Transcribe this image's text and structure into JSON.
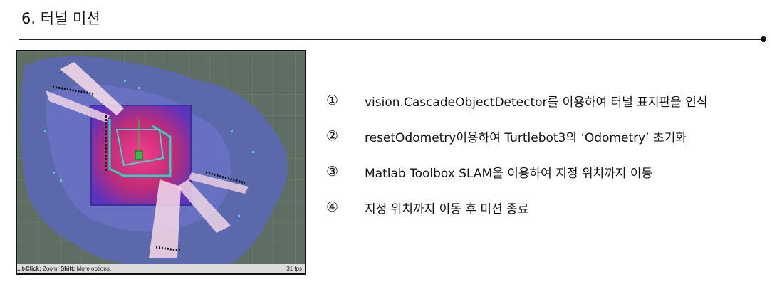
{
  "slide": {
    "title": "6. 터널 미션"
  },
  "screenshot": {
    "status_hint_prefix": "...t-Click:",
    "status_hint_zoom": " Zoom. ",
    "status_hint_shift": "Shift:",
    "status_hint_more": " More options.",
    "fps": "31 fps"
  },
  "steps": [
    {
      "marker": "①",
      "text": "vision.CascadeObjectDetector를 이용하여 터널 표지판을 인식"
    },
    {
      "marker": "②",
      "text": "resetOdometry이용하여 Turtlebot3의 ‘Odometry’ 초기화"
    },
    {
      "marker": "③",
      "text": "Matlab Toolbox SLAM을 이용하여 지정 위치까지 이동"
    },
    {
      "marker": "④",
      "text": "지정 위치까지 이동 후 미션 종료"
    }
  ]
}
